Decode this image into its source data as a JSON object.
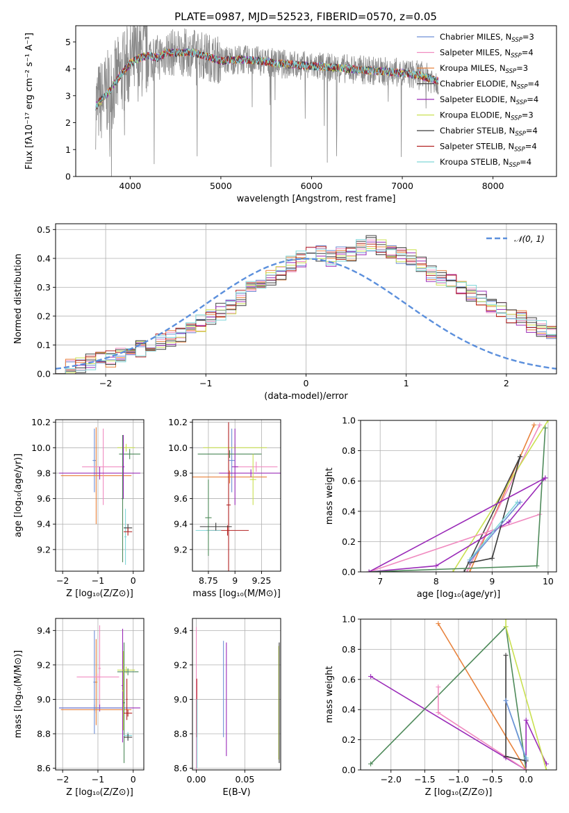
{
  "figure": {
    "title": "PLATE=0987, MJD=52523, FIBERID=0570, z=0.05"
  },
  "colors": {
    "Chabrier MILES": "#6e8fd6",
    "Salpeter MILES": "#f08bc0",
    "Kroupa MILES": "#e8823c",
    "Chabrier ELODIE": "#444444",
    "Salpeter ELODIE": "#9a2ab8",
    "Kroupa ELODIE": "#c9e050",
    "Chabrier STELIB": "#3a3a3a",
    "Salpeter STELIB": "#b22222",
    "Kroupa STELIB": "#7fd6d8",
    "data": "#888888",
    "green": "#4e8a5a",
    "gaussian": "#5b8fdc"
  },
  "chart_data": [
    {
      "id": "spectrum",
      "type": "line",
      "xlabel": "wavelength [Angstrom, rest frame]",
      "ylabel": "Flux [fλ10⁻¹⁷ erg cm⁻² s⁻¹ A⁻¹]",
      "xlim": [
        3400,
        8700
      ],
      "ylim": [
        0,
        5.6
      ],
      "xticks": [
        4000,
        5000,
        6000,
        7000,
        8000
      ],
      "yticks": [
        0,
        1,
        2,
        3,
        4,
        5
      ],
      "grid": false,
      "legend": "right",
      "legend_entries": [
        "Chabrier MILES, N_SSP=3",
        "Salpeter MILES, N_SSP=4",
        "Kroupa MILES, N_SSP=3",
        "Chabrier ELODIE, N_SSP=4",
        "Salpeter ELODIE, N_SSP=4",
        "Kroupa ELODIE, N_SSP=3",
        "Chabrier STELIB, N_SSP=4",
        "Salpeter STELIB, N_SSP=4",
        "Kroupa STELIB, N_SSP=4"
      ],
      "continuum": {
        "x": [
          3620,
          3700,
          3800,
          3900,
          4000,
          4100,
          4200,
          4300,
          4400,
          4500,
          4600,
          4700,
          4800,
          4900,
          5000,
          5200,
          5400,
          5600,
          5800,
          6000,
          6200,
          6400,
          6600,
          6800,
          7000,
          7200,
          7400
        ],
        "y": [
          2.6,
          2.9,
          3.3,
          3.8,
          4.2,
          4.4,
          4.5,
          4.4,
          4.6,
          4.6,
          4.6,
          4.6,
          4.5,
          4.4,
          4.3,
          4.35,
          4.3,
          4.2,
          4.15,
          4.1,
          4.05,
          4.0,
          3.95,
          3.9,
          3.85,
          3.75,
          3.55
        ]
      }
    },
    {
      "id": "residuals",
      "type": "bar",
      "xlabel": "(data-model)/error",
      "ylabel": "Normed distribution",
      "xlim": [
        -2.5,
        2.5
      ],
      "ylim": [
        0,
        0.52
      ],
      "xticks": [
        -2,
        -1,
        0,
        1,
        2
      ],
      "yticks": [
        0.0,
        0.1,
        0.2,
        0.3,
        0.4,
        0.5
      ],
      "grid": true,
      "legend": "top-right",
      "legend_entries": [
        "𝒩(0, 1)"
      ],
      "bin_edges_start": -2.5,
      "bin_width": 0.1,
      "histogram": [
        0.03,
        0.025,
        0.03,
        0.04,
        0.045,
        0.05,
        0.06,
        0.07,
        0.085,
        0.1,
        0.11,
        0.125,
        0.14,
        0.155,
        0.175,
        0.195,
        0.215,
        0.235,
        0.265,
        0.29,
        0.31,
        0.33,
        0.355,
        0.38,
        0.4,
        0.42,
        0.415,
        0.4,
        0.41,
        0.42,
        0.44,
        0.45,
        0.44,
        0.43,
        0.41,
        0.4,
        0.375,
        0.35,
        0.33,
        0.315,
        0.3,
        0.28,
        0.26,
        0.24,
        0.22,
        0.2,
        0.19,
        0.17,
        0.155,
        0.14,
        0.13,
        0.12,
        0.11,
        0.1,
        0.09,
        0.075,
        0.065,
        0.05,
        0.04,
        0.035,
        0.03,
        0.025,
        0.02
      ]
    },
    {
      "id": "age-vs-Z",
      "type": "scatter",
      "xlabel": "Z [log₁₀(Z/Z⊙)]",
      "ylabel": "age  [log₁₀(age/yr)]",
      "xlim": [
        -2.2,
        0.3
      ],
      "ylim": [
        9.03,
        10.22
      ],
      "xticks": [
        -2,
        -1,
        0
      ],
      "yticks": [
        9.2,
        9.4,
        9.6,
        9.8,
        10.0,
        10.2
      ],
      "grid": true,
      "errorbars": [
        {
          "series": "Chabrier MILES",
          "x": -1.1,
          "y": 9.9,
          "xerr": 0.05,
          "yerr": 0.25
        },
        {
          "series": "Kroupa MILES",
          "x": -1.05,
          "y": 9.78,
          "xerr": 1.0,
          "yerr": 0.38
        },
        {
          "series": "Salpeter MILES",
          "x": -0.85,
          "y": 9.85,
          "xerr": 0.6,
          "yerr": 0.3
        },
        {
          "series": "Salpeter ELODIE",
          "x": -0.95,
          "y": 9.8,
          "xerr": 1.15,
          "yerr": 0.05
        },
        {
          "series": "Kroupa ELODIE",
          "x": -0.2,
          "y": 10.0,
          "xerr": 0.25,
          "yerr": 0.03
        },
        {
          "series": "green",
          "x": -0.1,
          "y": 9.95,
          "xerr": 0.3,
          "yerr": 0.04
        },
        {
          "series": "green",
          "x": -0.3,
          "y": 9.6,
          "xerr": 0.03,
          "yerr": 0.5
        },
        {
          "series": "Salpeter ELODIE",
          "x": -0.28,
          "y": 9.85,
          "xerr": 0.03,
          "yerr": 0.25
        },
        {
          "series": "Kroupa STELIB",
          "x": -0.22,
          "y": 9.3,
          "xerr": 0.03,
          "yerr": 0.22
        },
        {
          "series": "Chabrier STELIB",
          "x": -0.15,
          "y": 9.37,
          "xerr": 0.12,
          "yerr": 0.03
        },
        {
          "series": "Salpeter STELIB",
          "x": -0.15,
          "y": 9.34,
          "xerr": 0.12,
          "yerr": 0.03
        }
      ]
    },
    {
      "id": "age-vs-mass",
      "type": "scatter",
      "xlabel": "mass [log₁₀(M/M⊙)]",
      "ylabel": "",
      "xlim": [
        8.6,
        9.43
      ],
      "ylim": [
        9.03,
        10.22
      ],
      "xticks": [
        8.75,
        9.0,
        9.25
      ],
      "yticks": [
        9.2,
        9.4,
        9.6,
        9.8,
        10.0,
        10.2
      ],
      "grid": true,
      "errorbars": [
        {
          "series": "Chabrier MILES",
          "x": 8.97,
          "y": 9.9,
          "xerr": 0.03,
          "yerr": 0.25
        },
        {
          "series": "Salpeter MILES",
          "x": 9.2,
          "y": 9.85,
          "xerr": 0.2,
          "yerr": 0.04
        },
        {
          "series": "Kroupa MILES",
          "x": 8.95,
          "y": 9.77,
          "xerr": 0.35,
          "yerr": 0.05
        },
        {
          "series": "Kroupa ELODIE",
          "x": 9.0,
          "y": 10.0,
          "xerr": 0.3,
          "yerr": 0.03
        },
        {
          "series": "green",
          "x": 8.95,
          "y": 9.95,
          "xerr": 0.3,
          "yerr": 0.03
        },
        {
          "series": "Salpeter ELODIE",
          "x": 9.15,
          "y": 9.8,
          "xerr": 0.3,
          "yerr": 0.03
        },
        {
          "series": "Salpeter ELODIE",
          "x": 9.0,
          "y": 9.85,
          "xerr": 0.03,
          "yerr": 0.3
        },
        {
          "series": "Kroupa ELODIE",
          "x": 9.17,
          "y": 9.75,
          "xerr": 0.03,
          "yerr": 0.2
        },
        {
          "series": "Salpeter STELIB",
          "x": 8.93,
          "y": 9.35,
          "xerr": 0.2,
          "yerr": 0.04
        },
        {
          "series": "Salpeter STELIB",
          "x": 8.94,
          "y": 9.55,
          "xerr": 0.02,
          "yerr": 0.65
        },
        {
          "series": "Kroupa STELIB",
          "x": 8.75,
          "y": 9.35,
          "xerr": 0.12,
          "yerr": 0.03
        },
        {
          "series": "green",
          "x": 8.75,
          "y": 9.45,
          "xerr": 0.03,
          "yerr": 0.3
        },
        {
          "series": "Chabrier STELIB",
          "x": 8.82,
          "y": 9.38,
          "xerr": 0.15,
          "yerr": 0.03
        }
      ]
    },
    {
      "id": "weight-vs-age",
      "type": "line",
      "xlabel": "age  [log₁₀(age/yr)]",
      "ylabel": "mass weight",
      "xlim": [
        6.65,
        10.15
      ],
      "ylim": [
        0,
        1.0
      ],
      "xticks": [
        7,
        8,
        9,
        10
      ],
      "yticks": [
        0.0,
        0.2,
        0.4,
        0.6,
        0.8,
        1.0
      ],
      "grid": true,
      "series": [
        {
          "series": "Kroupa MILES",
          "x": [
            8.6,
            9.75
          ],
          "y": [
            0.0,
            0.97
          ]
        },
        {
          "series": "Salpeter MILES",
          "x": [
            8.55,
            9.85
          ],
          "y": [
            0.0,
            0.97
          ]
        },
        {
          "series": "Kroupa ELODIE",
          "x": [
            8.3,
            10.0
          ],
          "y": [
            0.0,
            1.0
          ]
        },
        {
          "series": "Chabrier ELODIE",
          "x": [
            8.5,
            9.5
          ],
          "y": [
            0.0,
            0.76
          ]
        },
        {
          "series": "Salpeter ELODIE",
          "x": [
            6.8,
            8.0,
            9.3,
            9.95
          ],
          "y": [
            0.0,
            0.04,
            0.33,
            0.62
          ]
        },
        {
          "series": "Salpeter MILES",
          "x": [
            6.8,
            9.85
          ],
          "y": [
            0.0,
            0.38
          ]
        },
        {
          "series": "green",
          "x": [
            6.8,
            9.8,
            9.95
          ],
          "y": [
            0.0,
            0.04,
            0.95
          ]
        },
        {
          "series": "Chabrier STELIB",
          "x": [
            8.6,
            9.0,
            9.5
          ],
          "y": [
            0.06,
            0.09,
            0.76
          ]
        },
        {
          "series": "Kroupa STELIB",
          "x": [
            8.6,
            9.45
          ],
          "y": [
            0.08,
            0.46
          ]
        },
        {
          "series": "Chabrier MILES",
          "x": [
            8.6,
            9.5
          ],
          "y": [
            0.07,
            0.46
          ]
        },
        {
          "series": "Salpeter ELODIE",
          "x": [
            6.8,
            9.95
          ],
          "y": [
            0.0,
            0.62
          ]
        }
      ]
    },
    {
      "id": "mass-vs-Z",
      "type": "scatter",
      "xlabel": "Z [log₁₀(Z/Z⊙)]",
      "ylabel": "mass [log₁₀(M/M⊙)]",
      "xlim": [
        -2.2,
        0.3
      ],
      "ylim": [
        8.59,
        9.47
      ],
      "xticks": [
        -2,
        -1,
        0
      ],
      "yticks": [
        8.6,
        8.8,
        9.0,
        9.2,
        9.4
      ],
      "grid": true,
      "errorbars": [
        {
          "series": "Chabrier MILES",
          "x": -1.1,
          "y": 9.1,
          "xerr": 0.03,
          "yerr": 0.3
        },
        {
          "series": "Kroupa MILES",
          "x": -1.05,
          "y": 9.1,
          "xerr": 0.03,
          "yerr": 0.25
        },
        {
          "series": "Salpeter MILES",
          "x": -0.95,
          "y": 9.18,
          "xerr": 0.03,
          "yerr": 0.25
        },
        {
          "series": "Salpeter MILES",
          "x": -1.0,
          "y": 9.13,
          "xerr": 0.6,
          "yerr": 0.02
        },
        {
          "series": "Salpeter ELODIE",
          "x": -0.95,
          "y": 8.95,
          "xerr": 1.15,
          "yerr": 0.02
        },
        {
          "series": "Kroupa MILES",
          "x": -1.05,
          "y": 8.94,
          "xerr": 1.0,
          "yerr": 0.02
        },
        {
          "series": "Chabrier MILES",
          "x": -1.1,
          "y": 8.95,
          "xerr": 1.0,
          "yerr": 0.02
        },
        {
          "series": "Salpeter ELODIE",
          "x": -0.3,
          "y": 9.08,
          "xerr": 0.03,
          "yerr": 0.33
        },
        {
          "series": "Kroupa ELODIE",
          "x": -0.2,
          "y": 9.17,
          "xerr": 0.25,
          "yerr": 0.02
        },
        {
          "series": "green",
          "x": -0.15,
          "y": 9.16,
          "xerr": 0.3,
          "yerr": 0.02
        },
        {
          "series": "Kroupa ELODIE",
          "x": -0.28,
          "y": 9.05,
          "xerr": 0.03,
          "yerr": 0.23
        },
        {
          "series": "green",
          "x": -0.26,
          "y": 8.98,
          "xerr": 0.03,
          "yerr": 0.35
        },
        {
          "series": "Salpeter STELIB",
          "x": -0.15,
          "y": 8.92,
          "xerr": 0.12,
          "yerr": 0.02
        },
        {
          "series": "Salpeter STELIB",
          "x": -0.18,
          "y": 9.0,
          "xerr": 0.02,
          "yerr": 0.12
        },
        {
          "series": "Kroupa STELIB",
          "x": -0.15,
          "y": 8.79,
          "xerr": 0.12,
          "yerr": 0.02
        },
        {
          "series": "Chabrier STELIB",
          "x": -0.15,
          "y": 8.78,
          "xerr": 0.12,
          "yerr": 0.02
        }
      ]
    },
    {
      "id": "mass-vs-ebv",
      "type": "scatter",
      "xlabel": "E(B-V)",
      "ylabel": "",
      "xlim": [
        -0.004,
        0.087
      ],
      "ylim": [
        8.59,
        9.47
      ],
      "xticks": [
        0.0,
        0.05
      ],
      "xticklabels": [
        "0.00",
        "0.05"
      ],
      "yticks": [
        8.6,
        8.8,
        9.0,
        9.2,
        9.4
      ],
      "grid": true,
      "errorbars": [
        {
          "series": "Salpeter MILES",
          "x": 0.0,
          "y": 9.0,
          "xerr": 0.0,
          "yerr": 0.42
        },
        {
          "series": "Salpeter STELIB",
          "x": 0.0005,
          "y": 8.95,
          "xerr": 0.0,
          "yerr": 0.17
        },
        {
          "series": "Kroupa STELIB",
          "x": 0.0008,
          "y": 8.8,
          "xerr": 0.0,
          "yerr": 0.2
        },
        {
          "series": "Chabrier MILES",
          "x": 0.028,
          "y": 9.06,
          "xerr": 0.0,
          "yerr": 0.28
        },
        {
          "series": "Salpeter ELODIE",
          "x": 0.031,
          "y": 9.0,
          "xerr": 0.0,
          "yerr": 0.33
        },
        {
          "series": "Kroupa ELODIE",
          "x": 0.085,
          "y": 8.98,
          "xerr": 0.0,
          "yerr": 0.33
        },
        {
          "series": "Chabrier STELIB",
          "x": 0.0855,
          "y": 8.98,
          "xerr": 0.0,
          "yerr": 0.35
        }
      ]
    },
    {
      "id": "weight-vs-Z",
      "type": "line",
      "xlabel": "Z [log₁₀(Z/Z⊙)]",
      "ylabel": "mass weight",
      "xlim": [
        -2.45,
        0.45
      ],
      "ylim": [
        0,
        1.0
      ],
      "xticks": [
        -2.0,
        -1.5,
        -1.0,
        -0.5,
        0.0
      ],
      "xticklabels": [
        "−2.0",
        "−1.5",
        "−1.0",
        "−0.5",
        "0.0"
      ],
      "yticks": [
        0.0,
        0.2,
        0.4,
        0.6,
        0.8,
        1.0
      ],
      "grid": true,
      "series": [
        {
          "series": "Kroupa MILES",
          "x": [
            -1.3,
            0.0
          ],
          "y": [
            0.97,
            0.0
          ]
        },
        {
          "series": "Salpeter ELODIE",
          "x": [
            -2.3,
            -0.3,
            0.0,
            0.0,
            0.3
          ],
          "y": [
            0.62,
            0.08,
            0.0,
            0.33,
            0.04
          ]
        },
        {
          "series": "green",
          "x": [
            -2.3,
            -0.3,
            0.0
          ],
          "y": [
            0.04,
            0.95,
            0.0
          ]
        },
        {
          "series": "Salpeter MILES",
          "x": [
            -1.3,
            -1.3,
            0.0
          ],
          "y": [
            0.55,
            0.38,
            0.0
          ]
        },
        {
          "series": "Kroupa ELODIE",
          "x": [
            -0.3,
            -0.3,
            0.3
          ],
          "y": [
            1.0,
            0.95,
            0.0
          ]
        },
        {
          "series": "Chabrier STELIB",
          "x": [
            -0.3,
            -0.3,
            0.0
          ],
          "y": [
            0.76,
            0.09,
            0.06
          ]
        },
        {
          "series": "Kroupa STELIB",
          "x": [
            -0.3,
            0.0
          ],
          "y": [
            0.46,
            0.08
          ]
        },
        {
          "series": "Chabrier MILES",
          "x": [
            -0.3,
            0.0
          ],
          "y": [
            0.46,
            0.07
          ]
        }
      ]
    }
  ]
}
